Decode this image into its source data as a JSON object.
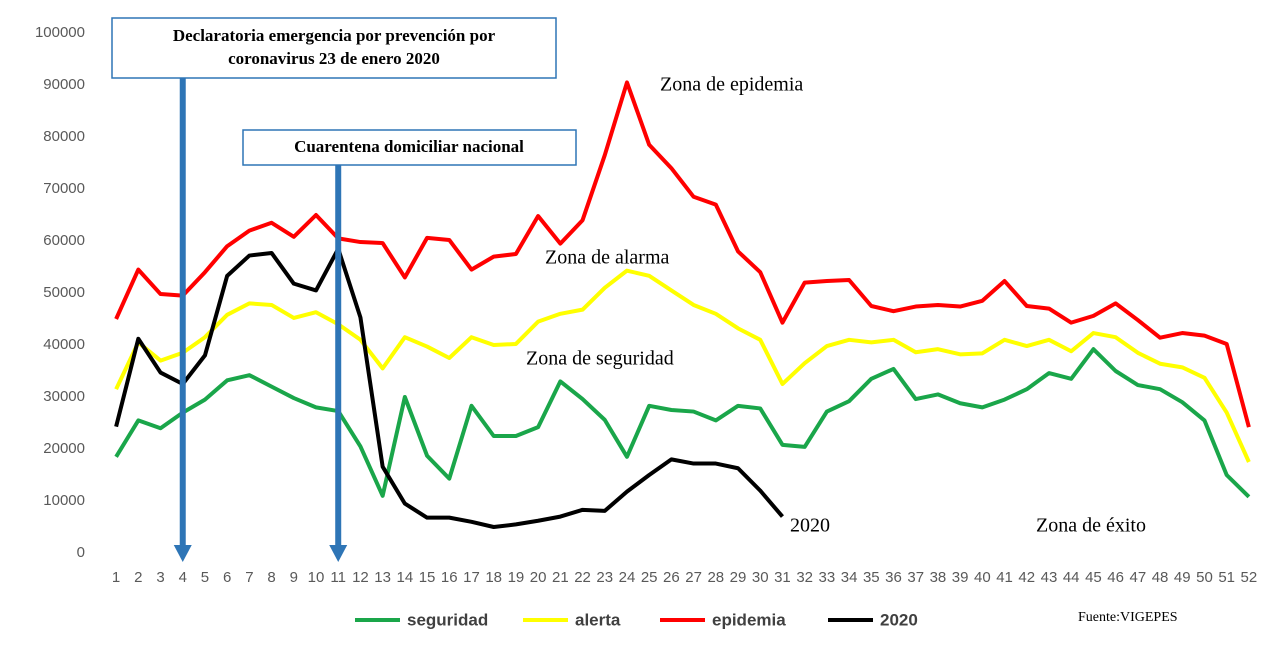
{
  "chart_data": {
    "type": "line",
    "categories": [
      1,
      2,
      3,
      4,
      5,
      6,
      7,
      8,
      9,
      10,
      11,
      12,
      13,
      14,
      15,
      16,
      17,
      18,
      19,
      20,
      21,
      22,
      23,
      24,
      25,
      26,
      27,
      28,
      29,
      30,
      31,
      32,
      33,
      34,
      35,
      36,
      37,
      38,
      39,
      40,
      41,
      42,
      43,
      44,
      45,
      46,
      47,
      48,
      49,
      50,
      51,
      52
    ],
    "ylim": [
      0,
      100000
    ],
    "yticks": [
      0,
      10000,
      20000,
      30000,
      40000,
      50000,
      60000,
      70000,
      80000,
      90000,
      100000
    ],
    "grid": false,
    "legend": "bottom",
    "series": [
      {
        "name": "seguridad",
        "color": "#1aa64a",
        "values": [
          18500,
          25500,
          24000,
          27000,
          29500,
          33200,
          34200,
          32000,
          29800,
          28000,
          27300,
          20500,
          11000,
          30000,
          18700,
          14300,
          28300,
          22500,
          22500,
          24200,
          33000,
          29600,
          25600,
          18500,
          28300,
          27500,
          27200,
          25500,
          28300,
          27800,
          20800,
          20400,
          27200,
          29200,
          33500,
          35400,
          29600,
          30500,
          28800,
          28000,
          29500,
          31500,
          34600,
          33500,
          39200,
          35000,
          32300,
          31500,
          29000,
          25500,
          15000,
          10800
        ]
      },
      {
        "name": "alerta",
        "color": "#ffff00",
        "values": [
          31500,
          40500,
          37000,
          38500,
          41500,
          45800,
          48000,
          47700,
          45200,
          46300,
          44000,
          41000,
          35500,
          41500,
          39700,
          37500,
          41500,
          40000,
          40200,
          44500,
          46000,
          46800,
          51000,
          54300,
          53300,
          50500,
          47700,
          46000,
          43200,
          41000,
          32500,
          36500,
          39800,
          41000,
          40500,
          41000,
          38600,
          39200,
          38200,
          38400,
          41000,
          39800,
          41000,
          38800,
          42300,
          41500,
          38500,
          36400,
          35700,
          33700,
          27000,
          17500
        ]
      },
      {
        "name": "epidemia",
        "color": "#ff0000",
        "values": [
          45000,
          54500,
          49800,
          49500,
          54000,
          59000,
          62000,
          63500,
          60800,
          65000,
          60500,
          59800,
          59600,
          53000,
          60600,
          60200,
          54500,
          57000,
          57500,
          64800,
          59500,
          64000,
          76500,
          90500,
          78500,
          74000,
          68500,
          67000,
          58000,
          54000,
          44300,
          52000,
          52300,
          52500,
          47500,
          46500,
          47400,
          47700,
          47400,
          48500,
          52300,
          47500,
          47000,
          44300,
          45600,
          48000,
          44800,
          41400,
          42300,
          41800,
          40200,
          24200
        ]
      },
      {
        "name": "2020",
        "color": "#000000",
        "values": [
          24300,
          41200,
          34700,
          32500,
          38000,
          53300,
          57200,
          57700,
          51800,
          50500,
          58500,
          45300,
          16600,
          9500,
          6800,
          6800,
          6000,
          5000,
          5500,
          6200,
          7000,
          8300,
          8100,
          11800,
          15000,
          18000,
          17200,
          17200,
          16300,
          12000,
          7000,
          null,
          null,
          null,
          null,
          null,
          null,
          null,
          null,
          null,
          null,
          null,
          null,
          null,
          null,
          null,
          null,
          null,
          null,
          null,
          null,
          null
        ]
      }
    ],
    "arrows": [
      {
        "x": 4,
        "lines": [
          "Declaratoria emergencia por prevención por",
          "coronavirus 23 de enero 2020"
        ]
      },
      {
        "x": 11,
        "lines": [
          "Cuarentena domiciliar nacional"
        ]
      }
    ],
    "annotations": [
      "Zona de epidemia",
      "Zona de alarma",
      "Zona de seguridad",
      "2020",
      "Zona de éxito"
    ],
    "source": "Fuente:VIGEPES"
  }
}
